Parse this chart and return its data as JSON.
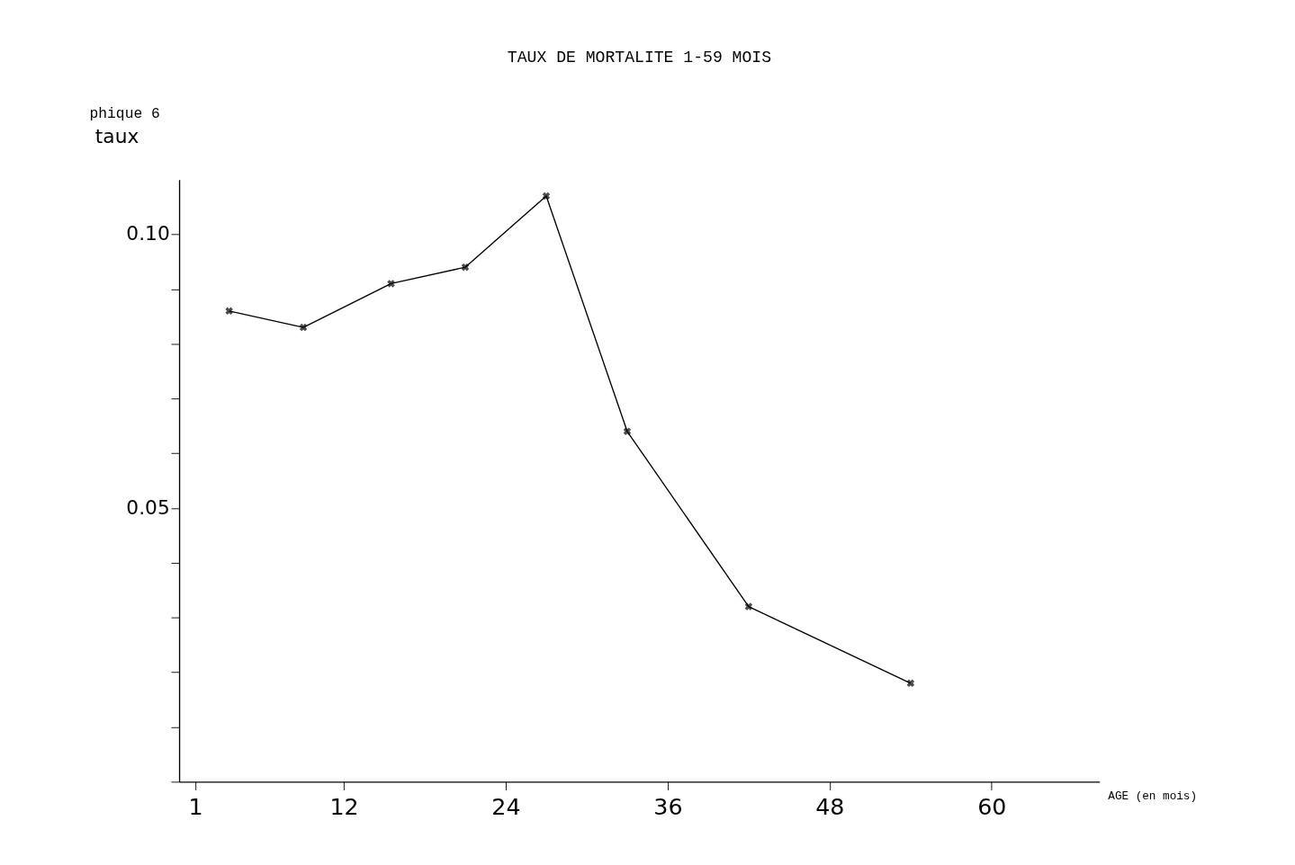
{
  "chart_data": {
    "type": "line",
    "title": "TAUX DE MORTALITE 1-59 MOIS",
    "annotations": [
      "phique 6"
    ],
    "xlabel": "AGE (en mois)",
    "ylabel": "taux",
    "x": [
      3.5,
      9,
      15.5,
      21,
      27,
      33,
      42,
      54
    ],
    "series": [
      {
        "color": "#000000",
        "values": [
          0.086,
          0.083,
          0.091,
          0.094,
          0.107,
          0.064,
          0.032,
          0.018
        ]
      }
    ],
    "xlim": [
      -0.2,
      68
    ],
    "xticks": [
      1,
      12,
      24,
      36,
      48,
      60
    ],
    "ylim": [
      0,
      0.11
    ],
    "yticks": [
      {
        "value": 0,
        "label": null
      },
      {
        "value": 0.01,
        "label": null
      },
      {
        "value": 0.02,
        "label": null
      },
      {
        "value": 0.03,
        "label": null
      },
      {
        "value": 0.04,
        "label": null
      },
      0.05,
      {
        "value": 0.06,
        "label": null
      },
      {
        "value": 0.07,
        "label": null
      },
      {
        "value": 0.08,
        "label": null
      },
      {
        "value": 0.09,
        "label": null
      },
      {
        "value": 0.1,
        "label": "0.10"
      }
    ],
    "marker": "cross",
    "line_style": "solid",
    "grid": false
  }
}
